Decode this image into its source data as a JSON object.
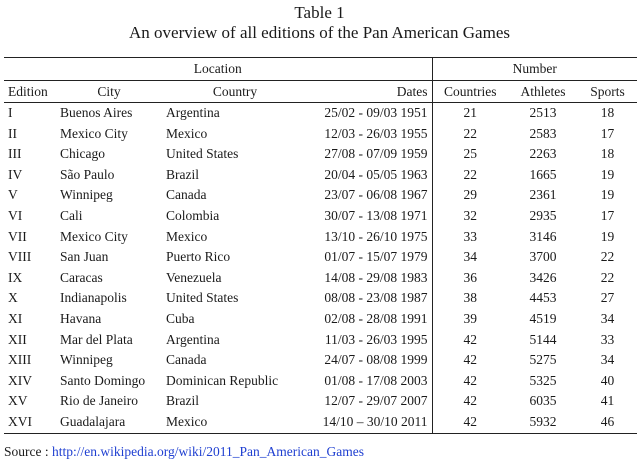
{
  "caption": {
    "line1": "Table 1",
    "line2": "An overview of all editions of the Pan American Games"
  },
  "headers": {
    "location": "Location",
    "number": "Number",
    "edition": "Edition",
    "city": "City",
    "country": "Country",
    "dates": "Dates",
    "countries": "Countries",
    "athletes": "Athletes",
    "sports": "Sports"
  },
  "rows": [
    {
      "edition": "I",
      "city": "Buenos Aires",
      "country": "Argentina",
      "dates": "25/02 - 09/03 1951",
      "countries": "21",
      "athletes": "2513",
      "sports": "18"
    },
    {
      "edition": "II",
      "city": "Mexico City",
      "country": "Mexico",
      "dates": "12/03 - 26/03 1955",
      "countries": "22",
      "athletes": "2583",
      "sports": "17"
    },
    {
      "edition": "III",
      "city": "Chicago",
      "country": "United States",
      "dates": "27/08 - 07/09 1959",
      "countries": "25",
      "athletes": "2263",
      "sports": "18"
    },
    {
      "edition": "IV",
      "city": "São Paulo",
      "country": "Brazil",
      "dates": "20/04 - 05/05 1963",
      "countries": "22",
      "athletes": "1665",
      "sports": "19"
    },
    {
      "edition": "V",
      "city": "Winnipeg",
      "country": "Canada",
      "dates": "23/07 - 06/08 1967",
      "countries": "29",
      "athletes": "2361",
      "sports": "19"
    },
    {
      "edition": "VI",
      "city": "Cali",
      "country": "Colombia",
      "dates": "30/07 - 13/08 1971",
      "countries": "32",
      "athletes": "2935",
      "sports": "17"
    },
    {
      "edition": "VII",
      "city": "Mexico City",
      "country": "Mexico",
      "dates": "13/10 - 26/10 1975",
      "countries": "33",
      "athletes": "3146",
      "sports": "19"
    },
    {
      "edition": "VIII",
      "city": "San Juan",
      "country": "Puerto Rico",
      "dates": "01/07 - 15/07 1979",
      "countries": "34",
      "athletes": "3700",
      "sports": "22"
    },
    {
      "edition": "IX",
      "city": "Caracas",
      "country": "Venezuela",
      "dates": "14/08 - 29/08 1983",
      "countries": "36",
      "athletes": "3426",
      "sports": "22"
    },
    {
      "edition": "X",
      "city": "Indianapolis",
      "country": "United States",
      "dates": "08/08 - 23/08 1987",
      "countries": "38",
      "athletes": "4453",
      "sports": "27"
    },
    {
      "edition": "XI",
      "city": "Havana",
      "country": "Cuba",
      "dates": "02/08 - 28/08 1991",
      "countries": "39",
      "athletes": "4519",
      "sports": "34"
    },
    {
      "edition": "XII",
      "city": "Mar del Plata",
      "country": "Argentina",
      "dates": "11/03 - 26/03 1995",
      "countries": "42",
      "athletes": "5144",
      "sports": "33"
    },
    {
      "edition": "XIII",
      "city": "Winnipeg",
      "country": "Canada",
      "dates": "24/07 - 08/08 1999",
      "countries": "42",
      "athletes": "5275",
      "sports": "34"
    },
    {
      "edition": "XIV",
      "city": "Santo Domingo",
      "country": "Dominican Republic",
      "dates": "01/08 - 17/08 2003",
      "countries": "42",
      "athletes": "5325",
      "sports": "40"
    },
    {
      "edition": "XV",
      "city": "Rio de Janeiro",
      "country": "Brazil",
      "dates": "12/07 - 29/07 2007",
      "countries": "42",
      "athletes": "6035",
      "sports": "41"
    },
    {
      "edition": "XVI",
      "city": "Guadalajara",
      "country": "Mexico",
      "dates": "14/10 – 30/10 2011",
      "countries": "42",
      "athletes": "5932",
      "sports": "46"
    }
  ],
  "source": {
    "label": "Source : ",
    "link_text": "http://en.wikipedia.org/wiki/2011_Pan_American_Games"
  },
  "colors": {
    "text": "#1a1a1a",
    "link": "#1f3fd1",
    "rule": "#222222"
  }
}
